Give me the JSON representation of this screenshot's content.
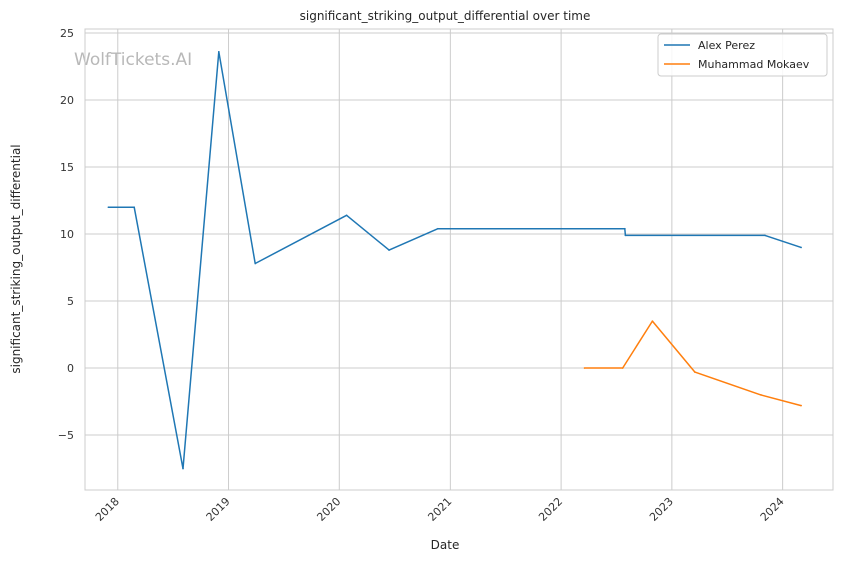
{
  "chart_data": {
    "type": "line",
    "title": "significant_striking_output_differential over time",
    "xlabel": "Date",
    "ylabel": "significant_striking_output_differential",
    "x_ticks": [
      "2018",
      "2019",
      "2020",
      "2021",
      "2022",
      "2023",
      "2024"
    ],
    "y_ticks": [
      {
        "value": 25,
        "label": "25"
      },
      {
        "value": 20,
        "label": "20"
      },
      {
        "value": 15,
        "label": "15"
      },
      {
        "value": 10,
        "label": "10"
      },
      {
        "value": 5,
        "label": "5"
      },
      {
        "value": 0,
        "label": "0"
      },
      {
        "value": -5,
        "label": "−5"
      }
    ],
    "xlim": [
      "2017-09-15",
      "2024-06-15"
    ],
    "ylim": [
      -9.1,
      25.3
    ],
    "grid": true,
    "legend_position": "top-right",
    "watermark": "WolfTickets.AI",
    "series": [
      {
        "name": "Alex Perez",
        "color": "#1f77b4",
        "points": [
          {
            "x": "2017-12-01",
            "y": 12.0
          },
          {
            "x": "2018-02-24",
            "y": 12.0
          },
          {
            "x": "2018-08-04",
            "y": -7.5
          },
          {
            "x": "2018-11-30",
            "y": 23.6
          },
          {
            "x": "2019-03-30",
            "y": 7.8
          },
          {
            "x": "2020-01-25",
            "y": 11.4
          },
          {
            "x": "2020-06-13",
            "y": 8.8
          },
          {
            "x": "2020-11-21",
            "y": 10.4
          },
          {
            "x": "2022-07-30",
            "y": 10.4
          },
          {
            "x": "2022-08-01",
            "y": 9.9
          },
          {
            "x": "2023-11-04",
            "y": 9.9
          },
          {
            "x": "2024-03-02",
            "y": 9.0
          }
        ]
      },
      {
        "name": "Muhammad Mokaev",
        "color": "#ff7f0e",
        "points": [
          {
            "x": "2022-03-19",
            "y": 0.0
          },
          {
            "x": "2022-07-23",
            "y": 0.0
          },
          {
            "x": "2022-10-29",
            "y": 3.5
          },
          {
            "x": "2023-03-18",
            "y": -0.3
          },
          {
            "x": "2023-10-21",
            "y": -2.0
          },
          {
            "x": "2024-03-02",
            "y": -2.8
          }
        ]
      }
    ]
  }
}
